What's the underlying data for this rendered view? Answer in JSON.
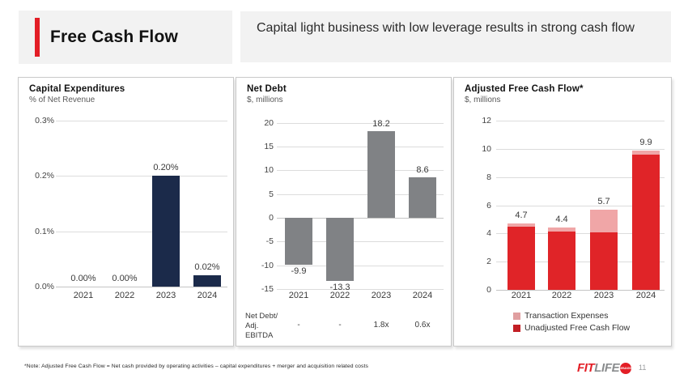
{
  "theme": {
    "accent_red": "#e31e26",
    "navy": "#1b2a4a",
    "gray_bar": "#808285",
    "bright_red": "#e02428",
    "pink": "#f0a6a7",
    "header_bg": "#f2f2f2"
  },
  "header": {
    "title": "Free Cash Flow",
    "subtitle": "Capital light business with low leverage results in strong cash flow"
  },
  "chart_data": [
    {
      "type": "bar",
      "title": "Capital Expenditures",
      "subtitle": "% of Net Revenue",
      "categories": [
        "2021",
        "2022",
        "2023",
        "2024"
      ],
      "values": [
        0.0,
        0.0,
        0.2,
        0.02
      ],
      "value_labels": [
        "0.00%",
        "0.00%",
        "0.20%",
        "0.02%"
      ],
      "ylim": [
        0,
        0.3
      ],
      "yticks": [
        {
          "v": 0.3,
          "label": "0.3%"
        },
        {
          "v": 0.2,
          "label": "0.2%"
        },
        {
          "v": 0.1,
          "label": "0.1%"
        },
        {
          "v": 0.0,
          "label": "0.0%"
        }
      ],
      "bar_color": "#1b2a4a",
      "grid": true
    },
    {
      "type": "bar",
      "title": "Net Debt",
      "subtitle": "$, millions",
      "categories": [
        "2021",
        "2022",
        "2023",
        "2024"
      ],
      "values": [
        -9.9,
        -13.3,
        18.2,
        8.6
      ],
      "value_labels": [
        "-9.9",
        "-13.3",
        "18.2",
        "8.6"
      ],
      "ylim": [
        -15,
        20
      ],
      "yticks": [
        {
          "v": 20,
          "label": "20"
        },
        {
          "v": 15,
          "label": "15"
        },
        {
          "v": 10,
          "label": "10"
        },
        {
          "v": 5,
          "label": "5"
        },
        {
          "v": 0,
          "label": "0"
        },
        {
          "v": -5,
          "label": "-5"
        },
        {
          "v": -10,
          "label": "-10"
        },
        {
          "v": -15,
          "label": "-15"
        }
      ],
      "bar_color": "#808285",
      "grid": true,
      "footer_row": {
        "label_lines": [
          "Net Debt/",
          "Adj.",
          "EBITDA"
        ],
        "values": [
          "-",
          "-",
          "1.8x",
          "0.6x"
        ]
      }
    },
    {
      "type": "stacked-bar",
      "title": "Adjusted Free Cash Flow*",
      "subtitle": "$, millions",
      "categories": [
        "2021",
        "2022",
        "2023",
        "2024"
      ],
      "series": [
        {
          "name": "Unadjusted Free Cash Flow",
          "values": [
            4.5,
            4.15,
            4.1,
            9.6
          ],
          "color": "#e02428"
        },
        {
          "name": "Transaction Expenses",
          "values": [
            0.2,
            0.25,
            1.6,
            0.3
          ],
          "color": "#f0a6a7"
        }
      ],
      "total_labels": [
        "4.7",
        "4.4",
        "5.7",
        "9.9"
      ],
      "ylim": [
        0,
        12
      ],
      "yticks": [
        {
          "v": 12,
          "label": "12"
        },
        {
          "v": 10,
          "label": "10"
        },
        {
          "v": 8,
          "label": "8"
        },
        {
          "v": 6,
          "label": "6"
        },
        {
          "v": 4,
          "label": "4"
        },
        {
          "v": 2,
          "label": "2"
        },
        {
          "v": 0,
          "label": "0"
        }
      ],
      "grid": true,
      "legend": [
        {
          "label": "Transaction Expenses",
          "color": "#e09fa0"
        },
        {
          "label": "Unadjusted Free Cash Flow",
          "color": "#c21f25"
        }
      ],
      "legend_position": "bottom"
    }
  ],
  "footer": {
    "note": "*Note: Adjusted Free Cash Flow = Net cash provided by operating activities – capital expenditures + merger and acquisition related costs",
    "page_number": "11",
    "logo": {
      "part1": "FIT",
      "part2": "LIFE",
      "badge": "BRANDS"
    }
  }
}
